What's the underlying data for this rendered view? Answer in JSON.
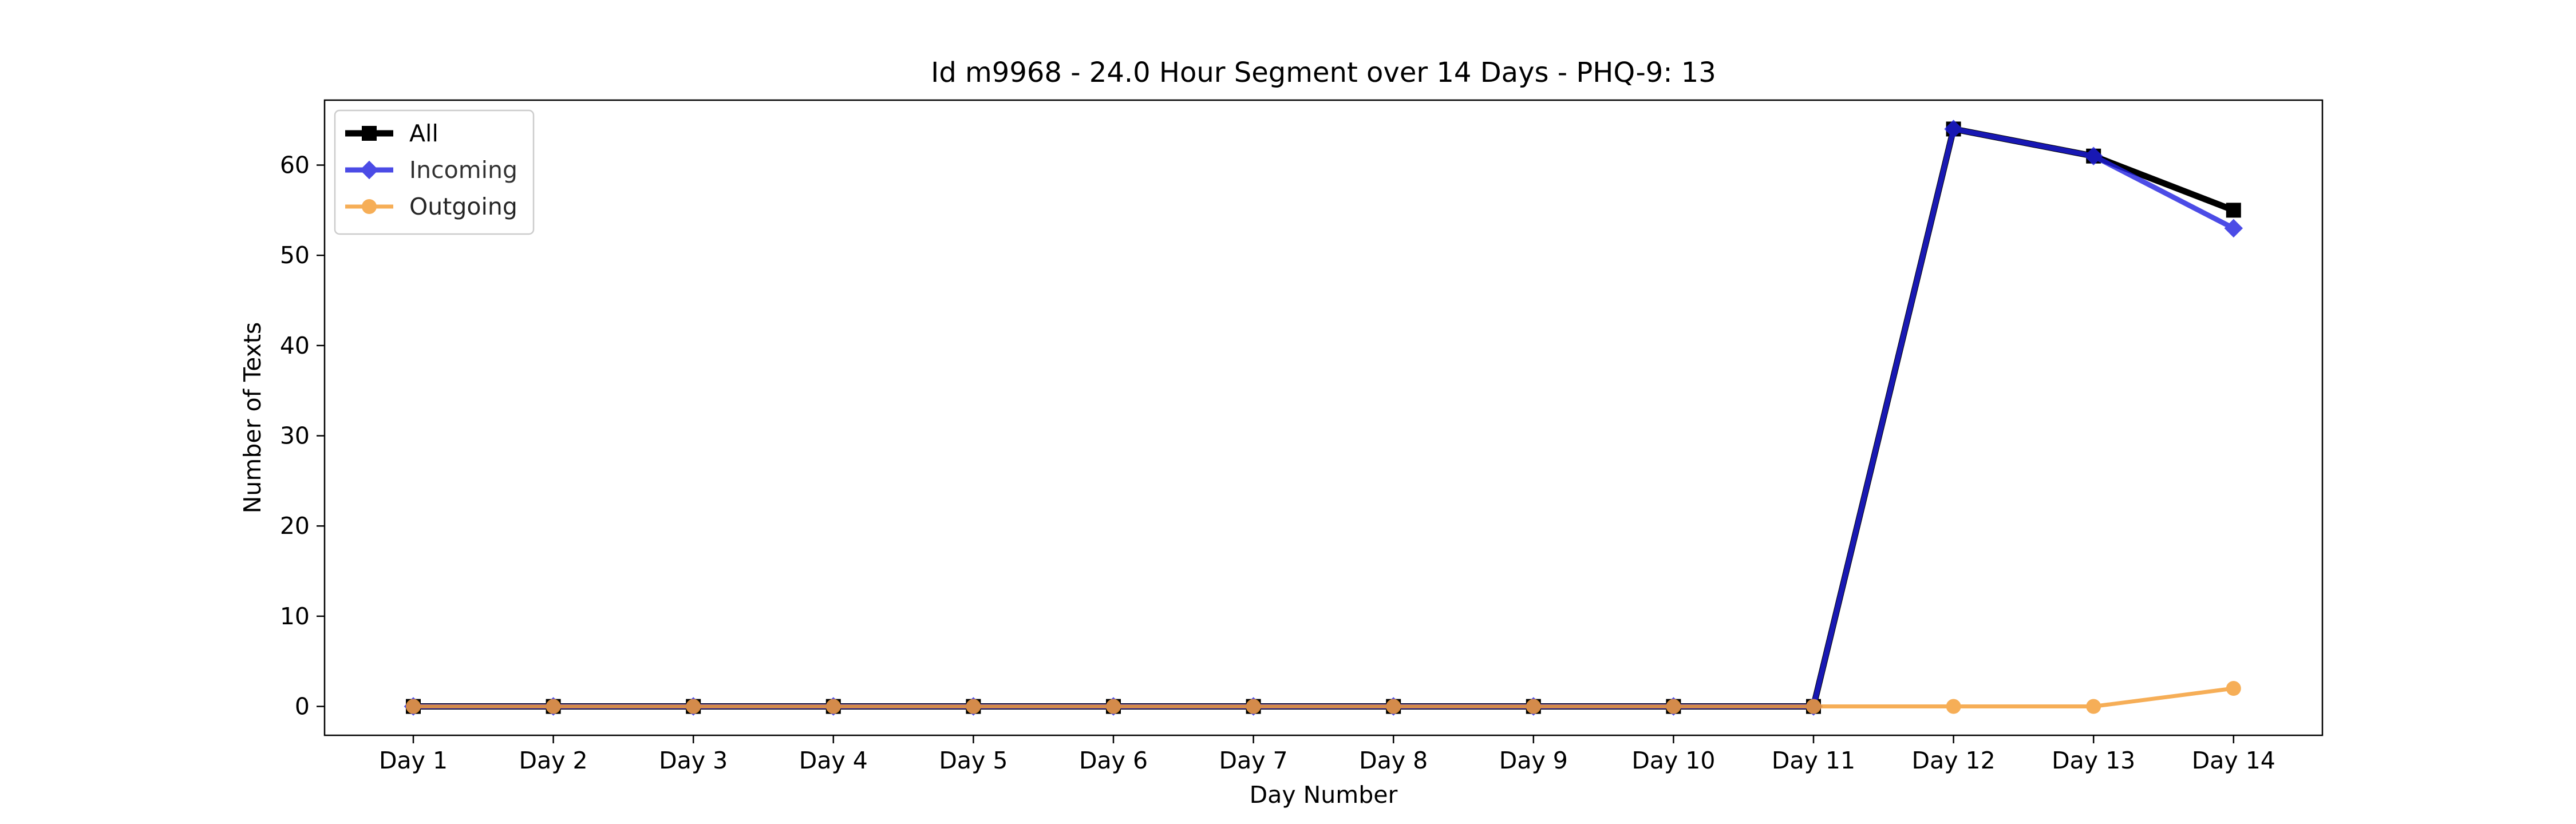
{
  "chart_data": {
    "type": "line",
    "title": "Id m9968 - 24.0 Hour Segment over 14 Days - PHQ-9: 13",
    "xlabel": "Day Number",
    "ylabel": "Number of Texts",
    "categories": [
      "Day 1",
      "Day 2",
      "Day 3",
      "Day 4",
      "Day 5",
      "Day 6",
      "Day 7",
      "Day 8",
      "Day 9",
      "Day 10",
      "Day 11",
      "Day 12",
      "Day 13",
      "Day 14"
    ],
    "yticks": [
      "0",
      "10",
      "20",
      "30",
      "40",
      "50",
      "60"
    ],
    "ylim": [
      -3.2,
      67.2
    ],
    "grid": false,
    "legend_position": "top-left",
    "series": [
      {
        "name": "All",
        "color": "#000000",
        "marker": "square",
        "values": [
          0,
          0,
          0,
          0,
          0,
          0,
          0,
          0,
          0,
          0,
          0,
          64,
          61,
          55
        ]
      },
      {
        "name": "Incoming",
        "color": "#1f1fe0",
        "marker": "diamond",
        "values": [
          0,
          0,
          0,
          0,
          0,
          0,
          0,
          0,
          0,
          0,
          0,
          64,
          61,
          53
        ]
      },
      {
        "name": "Outgoing",
        "color": "#f5a03a",
        "marker": "circle",
        "values": [
          0,
          0,
          0,
          0,
          0,
          0,
          0,
          0,
          0,
          0,
          0,
          0,
          0,
          2
        ]
      }
    ]
  }
}
